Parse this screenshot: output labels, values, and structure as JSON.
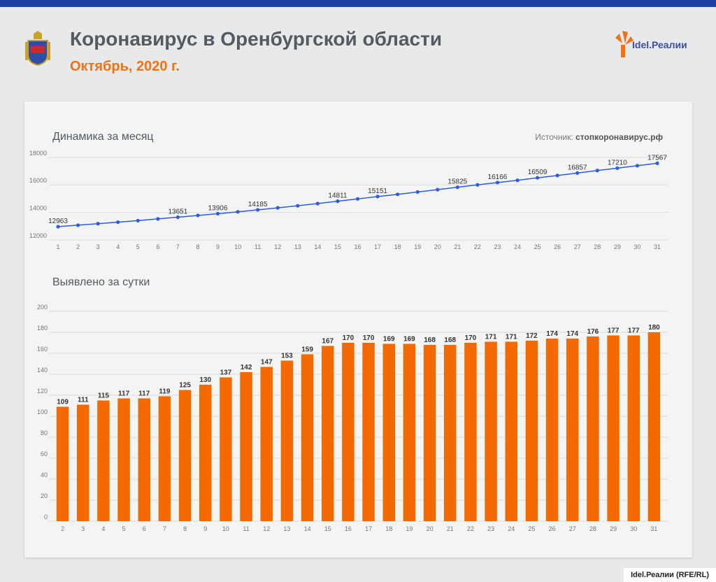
{
  "header": {
    "title": "Коронавирус в Оренбургской области",
    "subtitle": "Октябрь, 2020 г.",
    "logo_text": "Idel.Реалии"
  },
  "source": {
    "label": "Источник:",
    "value": "стопкоронавирус.рф"
  },
  "footer": {
    "credit": "Idel.Реалии (RFE/RL)"
  },
  "colors": {
    "line": "#2f5be0",
    "bar": "#f56a00",
    "accent": "#f07213",
    "topbar": "#1d3fa3"
  },
  "chart_data": [
    {
      "type": "line",
      "title": "Динамика за месяц",
      "x": [
        1,
        2,
        3,
        4,
        5,
        6,
        7,
        8,
        9,
        10,
        11,
        12,
        13,
        14,
        15,
        16,
        17,
        18,
        19,
        20,
        21,
        22,
        23,
        24,
        25,
        26,
        27,
        28,
        29,
        30,
        31
      ],
      "values": [
        12963,
        13070,
        13180,
        13290,
        13400,
        13530,
        13651,
        13780,
        13906,
        14040,
        14185,
        14330,
        14480,
        14640,
        14811,
        14980,
        15151,
        15310,
        15480,
        15650,
        15825,
        16000,
        16166,
        16330,
        16509,
        16680,
        16857,
        17040,
        17210,
        17390,
        17567
      ],
      "labeled_indices": [
        0,
        6,
        8,
        10,
        14,
        16,
        20,
        22,
        24,
        26,
        28,
        30
      ],
      "yticks": [
        12000,
        14000,
        16000,
        18000
      ],
      "ylim": [
        12000,
        18500
      ]
    },
    {
      "type": "bar",
      "title": "Выявлено за сутки",
      "categories": [
        "2",
        "3",
        "4",
        "5",
        "6",
        "7",
        "8",
        "9",
        "10",
        "11",
        "12",
        "13",
        "14",
        "15",
        "16",
        "17",
        "18",
        "19",
        "20",
        "21",
        "22",
        "23",
        "24",
        "25",
        "26",
        "27",
        "28",
        "29",
        "30",
        "31"
      ],
      "values": [
        109,
        111,
        115,
        117,
        117,
        119,
        125,
        130,
        137,
        142,
        147,
        153,
        159,
        167,
        170,
        170,
        169,
        169,
        168,
        168,
        170,
        171,
        171,
        172,
        174,
        174,
        176,
        177,
        177,
        180
      ],
      "yticks": [
        0,
        20,
        40,
        60,
        80,
        100,
        120,
        140,
        160,
        180,
        200
      ],
      "ylim": [
        0,
        200
      ]
    }
  ]
}
